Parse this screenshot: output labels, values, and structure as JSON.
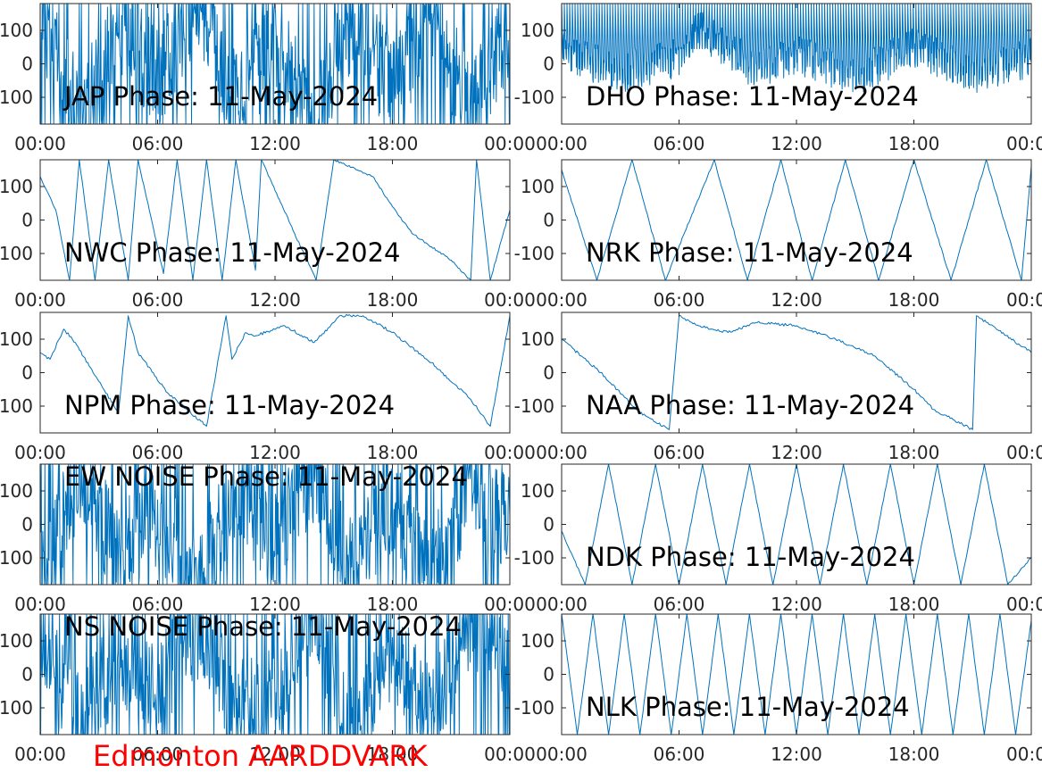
{
  "footer": {
    "label": "Edmonton AARDDVARK",
    "color": "#ff0000"
  },
  "style": {
    "series_color": "#0072bd",
    "axes_color": "#262626",
    "background": "#ffffff"
  },
  "chart_data": [
    {
      "type": "line",
      "title": "JAP Phase: 11-May-2024",
      "xticks": [
        "00:00",
        "06:00",
        "12:00",
        "18:00",
        "00:00"
      ],
      "yticks": [
        "100",
        "0",
        "100"
      ],
      "ylim": [
        -180,
        180
      ],
      "xlim": [
        0,
        24
      ],
      "series": [
        {
          "pattern": "noise",
          "x": [
            0,
            2,
            4,
            6,
            8,
            10,
            12,
            14,
            16,
            18,
            20,
            22,
            24
          ],
          "y": [
            150,
            -160,
            90,
            -40,
            170,
            -120,
            60,
            -170,
            130,
            -80,
            160,
            -150,
            100
          ]
        }
      ]
    },
    {
      "type": "line",
      "title": "DHO Phase: 11-May-2024",
      "xticks": [
        "00:00",
        "06:00",
        "12:00",
        "18:00",
        "00:0"
      ],
      "yticks": [
        "100",
        "0",
        "-100"
      ],
      "ylim": [
        -180,
        180
      ],
      "xlim": [
        0,
        24
      ],
      "series": [
        {
          "pattern": "fast-wrap",
          "x": [
            0,
            3,
            6,
            7,
            8,
            10,
            12,
            15,
            18,
            21,
            24
          ],
          "y": [
            40,
            -30,
            20,
            120,
            60,
            -20,
            30,
            -40,
            50,
            -30,
            20
          ]
        }
      ]
    },
    {
      "type": "line",
      "title": "NWC Phase: 11-May-2024",
      "xticks": [
        "00:00",
        "06:00",
        "12:00",
        "18:00",
        "00:00"
      ],
      "yticks": [
        "100",
        "0",
        "100"
      ],
      "ylim": [
        -180,
        180
      ],
      "xlim": [
        0,
        24
      ],
      "series": [
        {
          "pattern": "sawtooth",
          "x": [
            0,
            0.8,
            1.5,
            2.0,
            2.8,
            3.5,
            4.5,
            5.0,
            6.3,
            7.0,
            7.8,
            8.5,
            9.3,
            10.0,
            11.0,
            11.3,
            13.0,
            14.1,
            15.0,
            17.0,
            18.0,
            19.0,
            20.0,
            21.0,
            22.0,
            22.3,
            23.0,
            24.0
          ],
          "y": [
            130,
            30,
            -180,
            180,
            -180,
            180,
            -180,
            180,
            -160,
            180,
            -180,
            180,
            -180,
            180,
            -150,
            180,
            -40,
            -180,
            180,
            130,
            40,
            -40,
            -80,
            -120,
            -180,
            180,
            -180,
            30
          ]
        }
      ]
    },
    {
      "type": "line",
      "title": "NRK Phase: 11-May-2024",
      "xticks": [
        "00:00",
        "06:00",
        "12:00",
        "18:00",
        "00:0"
      ],
      "yticks": [
        "100",
        "0",
        "-100"
      ],
      "ylim": [
        -180,
        180
      ],
      "xlim": [
        0,
        24
      ],
      "series": [
        {
          "pattern": "sawtooth",
          "x": [
            0,
            1.8,
            3.6,
            5.3,
            7.8,
            9.5,
            11.2,
            12.8,
            14.5,
            16.2,
            18.0,
            19.9,
            21.7,
            23.5,
            24.0
          ],
          "y": [
            150,
            -180,
            180,
            -180,
            180,
            -180,
            180,
            -180,
            180,
            -180,
            180,
            -180,
            180,
            -180,
            160
          ]
        }
      ]
    },
    {
      "type": "line",
      "title": "NPM Phase: 11-May-2024",
      "xticks": [
        "00:00",
        "06:00",
        "12:00",
        "18:00",
        "00:00"
      ],
      "yticks": [
        "100",
        "0",
        "100"
      ],
      "ylim": [
        -180,
        180
      ],
      "xlim": [
        0,
        24
      ],
      "series": [
        {
          "pattern": "trend",
          "x": [
            0,
            0.5,
            1.2,
            1.8,
            2.5,
            4.0,
            4.5,
            5.0,
            6.5,
            8.5,
            9.5,
            9.8,
            10.5,
            11.0,
            12.5,
            14.0,
            15.0,
            15.3,
            16.5,
            18.0,
            20.0,
            22.0,
            23.0,
            24.0
          ],
          "y": [
            60,
            40,
            130,
            90,
            20,
            -120,
            170,
            60,
            -60,
            -160,
            170,
            40,
            120,
            110,
            140,
            90,
            150,
            170,
            170,
            120,
            30,
            -80,
            -160,
            170
          ]
        }
      ]
    },
    {
      "type": "line",
      "title": "NAA Phase: 11-May-2024",
      "xticks": [
        "00:00",
        "06:00",
        "12:00",
        "18:00",
        "00:0"
      ],
      "yticks": [
        "100",
        "0",
        "-100"
      ],
      "ylim": [
        -180,
        180
      ],
      "xlim": [
        0,
        24
      ],
      "series": [
        {
          "pattern": "trend",
          "x": [
            0,
            2.0,
            4.0,
            5.5,
            6.0,
            7.0,
            8.5,
            10.0,
            12.0,
            14.0,
            16.0,
            18.0,
            19.0,
            20.0,
            21.0,
            21.2,
            24.0
          ],
          "y": [
            100,
            0,
            -120,
            -170,
            170,
            140,
            120,
            150,
            140,
            100,
            50,
            -50,
            -110,
            -140,
            -170,
            170,
            60
          ]
        }
      ]
    },
    {
      "type": "line",
      "title": "EW NOISE Phase: 11-May-2024",
      "xticks": [
        "00:00",
        "06:00",
        "12:00",
        "18:00",
        "00:00"
      ],
      "yticks": [
        "100",
        "0",
        "100"
      ],
      "ylim": [
        -180,
        180
      ],
      "xlim": [
        0,
        24
      ],
      "series": [
        {
          "pattern": "noise",
          "x": [
            0,
            2,
            4,
            6,
            8,
            10,
            12,
            14,
            16,
            18,
            20,
            22,
            24
          ],
          "y": [
            -160,
            140,
            -90,
            30,
            -170,
            110,
            -50,
            160,
            -130,
            70,
            -150,
            120,
            0
          ]
        }
      ]
    },
    {
      "type": "line",
      "title": "NDK Phase: 11-May-2024",
      "xticks": [
        "00:00",
        "06:00",
        "12:00",
        "18:00",
        "00:0"
      ],
      "yticks": [
        "100",
        "0",
        "-100"
      ],
      "ylim": [
        -180,
        180
      ],
      "xlim": [
        0,
        24
      ],
      "series": [
        {
          "pattern": "sawtooth",
          "x": [
            0,
            1.2,
            2.4,
            3.6,
            4.8,
            6.0,
            7.2,
            8.4,
            9.6,
            10.8,
            12.0,
            13.2,
            14.4,
            15.6,
            16.8,
            18.0,
            19.2,
            20.4,
            21.6,
            22.8,
            24.0
          ],
          "y": [
            -20,
            -180,
            180,
            -180,
            180,
            -180,
            180,
            -180,
            180,
            -180,
            180,
            -180,
            180,
            -180,
            180,
            -180,
            180,
            -180,
            180,
            -180,
            -100
          ]
        }
      ]
    },
    {
      "type": "line",
      "title": "NS NOISE Phase: 11-May-2024",
      "xticks": [
        "00:00",
        "06:00",
        "12:00",
        "18:00",
        "00:00"
      ],
      "yticks": [
        "100",
        "0",
        "100"
      ],
      "ylim": [
        -180,
        180
      ],
      "xlim": [
        0,
        24
      ],
      "series": [
        {
          "pattern": "noise",
          "x": [
            0,
            2,
            4,
            6,
            8,
            10,
            12,
            14,
            16,
            18,
            20,
            22,
            24
          ],
          "y": [
            120,
            -150,
            60,
            -30,
            140,
            -100,
            -60,
            150,
            -170,
            80,
            -130,
            150,
            60
          ]
        }
      ]
    },
    {
      "type": "line",
      "title": "NLK Phase: 11-May-2024",
      "xticks": [
        "00:00",
        "06:00",
        "12:00",
        "18:00",
        "00:0"
      ],
      "yticks": [
        "100",
        "0",
        "-100"
      ],
      "ylim": [
        -180,
        180
      ],
      "xlim": [
        0,
        24
      ],
      "series": [
        {
          "pattern": "sawtooth",
          "x": [
            0,
            0.8,
            1.6,
            2.4,
            3.2,
            4.0,
            4.8,
            5.6,
            6.4,
            7.2,
            8.0,
            8.8,
            9.6,
            10.4,
            11.2,
            12.0,
            12.8,
            13.6,
            14.4,
            15.2,
            16.0,
            16.8,
            17.6,
            18.4,
            19.2,
            20.0,
            20.8,
            21.6,
            22.4,
            23.2,
            24.0
          ],
          "y": [
            180,
            -180,
            180,
            -180,
            180,
            -180,
            180,
            -180,
            180,
            -180,
            180,
            -180,
            180,
            -180,
            180,
            -180,
            180,
            -180,
            180,
            -180,
            180,
            -180,
            180,
            -180,
            180,
            -180,
            180,
            -180,
            180,
            -180,
            160
          ]
        }
      ]
    }
  ]
}
